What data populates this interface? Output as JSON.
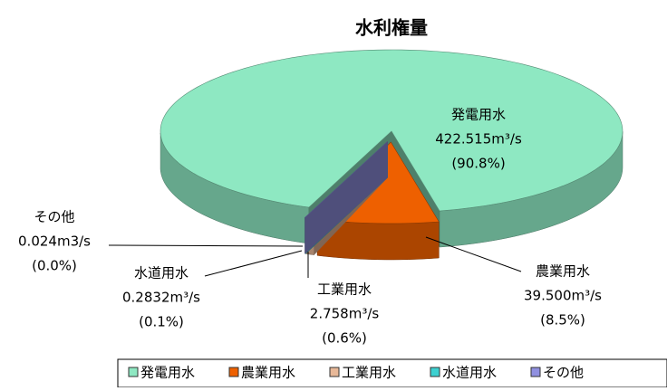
{
  "chart_data": {
    "type": "pie",
    "title": "水利権量",
    "categories": [
      "発電用水",
      "農業用水",
      "工業用水",
      "水道用水",
      "その他"
    ],
    "values": [
      422.515,
      39.5,
      2.758,
      0.2832,
      0.024
    ],
    "value_labels": [
      "422.515m³/s",
      "39.500m³/s",
      "2.758m³/s",
      "0.2832m³/s",
      "0.024m3/s"
    ],
    "percent_labels": [
      "(90.8%)",
      "(8.5%)",
      "(0.6%)",
      "(0.1%)",
      "(0.0%)"
    ],
    "colors": [
      "#8ee8c2",
      "#ee6000",
      "#e8b898",
      "#3cd0d0",
      "#9090e0"
    ]
  }
}
